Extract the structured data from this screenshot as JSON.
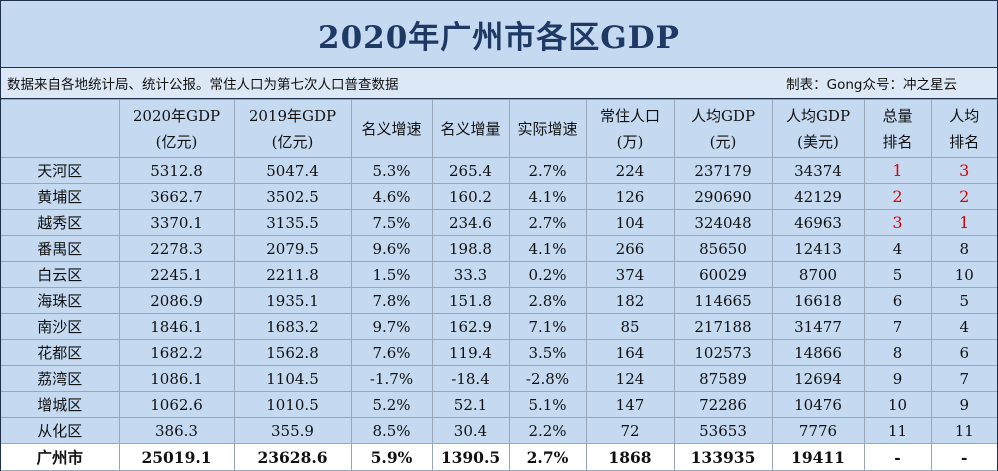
{
  "title": "2020年广州市各区GDP",
  "source_note": "数据来自各地统计局、统计公报。常住人口为第七次人口普查数据",
  "credit": "制表：Gong众号：冲之星云",
  "headers": [
    {
      "l1": "",
      "l2": ""
    },
    {
      "l1": "2020年GDP",
      "l2": "(亿元)"
    },
    {
      "l1": "2019年GDP",
      "l2": "(亿元)"
    },
    {
      "l1": "名义增速",
      "l2": ""
    },
    {
      "l1": "名义增量",
      "l2": ""
    },
    {
      "l1": "实际增速",
      "l2": ""
    },
    {
      "l1": "常住人口",
      "l2": "(万)"
    },
    {
      "l1": "人均GDP",
      "l2": "(元)"
    },
    {
      "l1": "人均GDP",
      "l2": "(美元)"
    },
    {
      "l1": "总量",
      "l2": "排名"
    },
    {
      "l1": "人均",
      "l2": "排名"
    }
  ],
  "rows": [
    [
      "天河区",
      "5312.8",
      "5047.4",
      "5.3%",
      "265.4",
      "2.7%",
      "224",
      "237179",
      "34374",
      "1",
      "3"
    ],
    [
      "黄埔区",
      "3662.7",
      "3502.5",
      "4.6%",
      "160.2",
      "4.1%",
      "126",
      "290690",
      "42129",
      "2",
      "2"
    ],
    [
      "越秀区",
      "3370.1",
      "3135.5",
      "7.5%",
      "234.6",
      "2.7%",
      "104",
      "324048",
      "46963",
      "3",
      "1"
    ],
    [
      "番禺区",
      "2278.3",
      "2079.5",
      "9.6%",
      "198.8",
      "4.1%",
      "266",
      "85650",
      "12413",
      "4",
      "8"
    ],
    [
      "白云区",
      "2245.1",
      "2211.8",
      "1.5%",
      "33.3",
      "0.2%",
      "374",
      "60029",
      "8700",
      "5",
      "10"
    ],
    [
      "海珠区",
      "2086.9",
      "1935.1",
      "7.8%",
      "151.8",
      "2.8%",
      "182",
      "114665",
      "16618",
      "6",
      "5"
    ],
    [
      "南沙区",
      "1846.1",
      "1683.2",
      "9.7%",
      "162.9",
      "7.1%",
      "85",
      "217188",
      "31477",
      "7",
      "4"
    ],
    [
      "花都区",
      "1682.2",
      "1562.8",
      "7.6%",
      "119.4",
      "3.5%",
      "164",
      "102573",
      "14866",
      "8",
      "6"
    ],
    [
      "荔湾区",
      "1086.1",
      "1104.5",
      "-1.7%",
      "-18.4",
      "-2.8%",
      "124",
      "87589",
      "12694",
      "9",
      "7"
    ],
    [
      "增城区",
      "1062.6",
      "1010.5",
      "5.2%",
      "52.1",
      "5.1%",
      "147",
      "72286",
      "10476",
      "10",
      "9"
    ],
    [
      "从化区",
      "386.3",
      "355.9",
      "8.5%",
      "30.4",
      "2.2%",
      "72",
      "53653",
      "7776",
      "11",
      "11"
    ]
  ],
  "total": [
    "广州市",
    "25019.1",
    "23628.6",
    "5.9%",
    "1390.5",
    "2.7%",
    "1868",
    "133935",
    "19411",
    "-",
    "-"
  ],
  "highlight_color": "#e00000"
}
